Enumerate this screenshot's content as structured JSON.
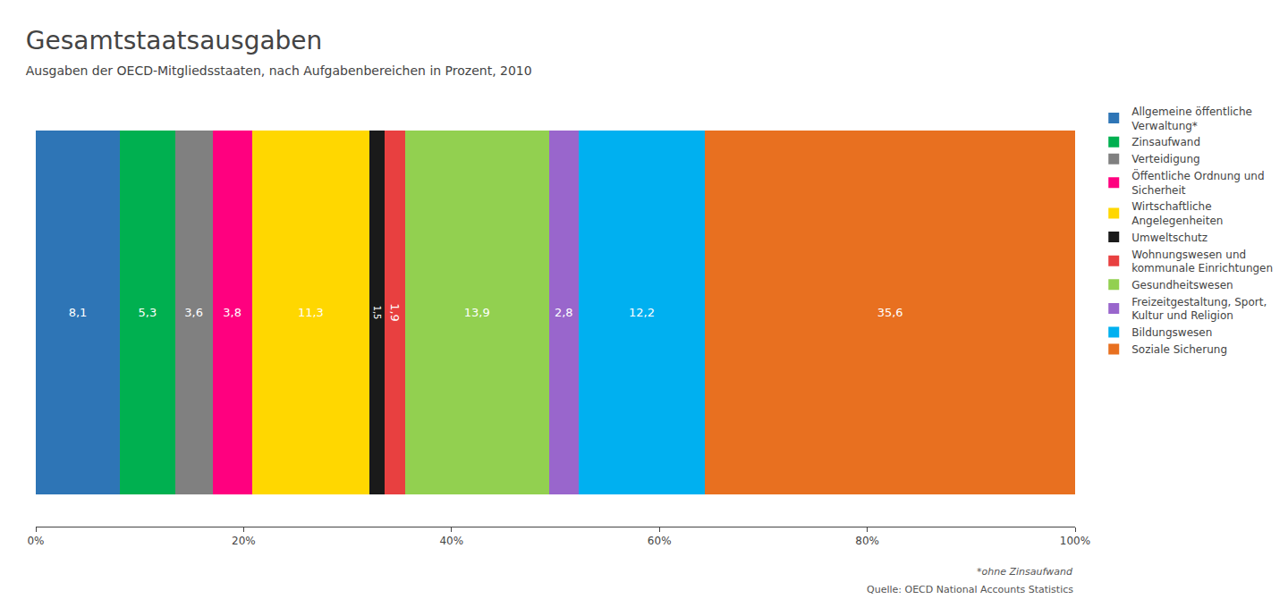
{
  "chart_data": {
    "type": "bar",
    "title": "Gesamtstaatsausgaben",
    "subtitle": "Ausgaben der OECD-Mitgliedsstaaten, nach Aufgabenbereichen in Prozent, 2010",
    "orientation": "horizontal",
    "stacked": true,
    "data_labels": true,
    "grid": false,
    "legend": "right",
    "tick_labels": "x",
    "categories": [
      null
    ],
    "series": [
      {
        "name": "Allgemeine öffentliche\nVerwaltung*",
        "color": "#2e75b6",
        "values": [
          8.1
        ],
        "value_labels": [
          "8,1"
        ]
      },
      {
        "name": "Zinsaufwand",
        "color": "#00b050",
        "values": [
          5.3
        ],
        "value_labels": [
          "5,3"
        ]
      },
      {
        "name": "Verteidigung",
        "color": "#808080",
        "values": [
          3.6
        ],
        "value_labels": [
          "3,6"
        ]
      },
      {
        "name": "Öffentliche Ordnung und\nSicherheit",
        "color": "#ff007f",
        "values": [
          3.8
        ],
        "value_labels": [
          "3,8"
        ]
      },
      {
        "name": "Wirtschaftliche\nAngelegenheiten",
        "color": "#ffd700",
        "values": [
          11.3
        ],
        "value_labels": [
          "11,3"
        ]
      },
      {
        "name": "Umweltschutz",
        "color": "#1a1a1a",
        "values": [
          1.5
        ],
        "value_labels": [
          "1,5"
        ]
      },
      {
        "name": "Wohnungswesen und\nkommunale Einrichtungen",
        "color": "#e84040",
        "values": [
          1.9
        ],
        "value_labels": [
          "1,9"
        ]
      },
      {
        "name": "Gesundheitswesen",
        "color": "#92d050",
        "values": [
          13.9
        ],
        "value_labels": [
          "13,9"
        ]
      },
      {
        "name": "Freizeitgestaltung, Sport,\nKultur und Religion",
        "color": "#9966cc",
        "values": [
          2.8
        ],
        "value_labels": [
          "2,8"
        ]
      },
      {
        "name": "Bildungswesen",
        "color": "#00b0f0",
        "values": [
          12.2
        ],
        "value_labels": [
          "12,2"
        ]
      },
      {
        "name": "Soziale Sicherung",
        "color": "#e87020",
        "values": [
          35.6
        ],
        "value_labels": [
          "35,6"
        ]
      }
    ],
    "xlim": [
      0,
      100
    ],
    "xticks": [
      {
        "value": 0,
        "label": "0%"
      },
      {
        "value": 20,
        "label": "20%"
      },
      {
        "value": 40,
        "label": "40%"
      },
      {
        "value": 60,
        "label": "60%"
      },
      {
        "value": 80,
        "label": "80%"
      },
      {
        "value": 100,
        "label": "100%"
      }
    ],
    "annotations": [
      "*ohne Zinsaufwand",
      "Quelle: OECD National Accounts Statistics"
    ]
  }
}
